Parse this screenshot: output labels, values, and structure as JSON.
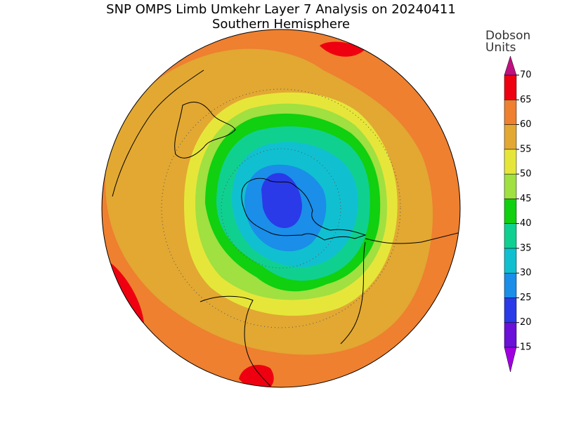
{
  "title": "SNP OMPS Limb Umkehr Layer 7 Analysis on 20240411",
  "subtitle": "Southern Hemisphere",
  "colorbar": {
    "label_lines": [
      "Dobson",
      "Units"
    ],
    "range": [
      15,
      70
    ],
    "ticks": [
      15,
      20,
      25,
      30,
      35,
      40,
      45,
      50,
      55,
      60,
      65,
      70
    ],
    "colors": [
      "#a000e0",
      "#6a10d8",
      "#2a3ae8",
      "#1a8ee8",
      "#10c0d0",
      "#10d090",
      "#10d010",
      "#a0e040",
      "#e6e63a",
      "#e2a832",
      "#ee8030",
      "#ee0010",
      "#c01080"
    ]
  }
}
